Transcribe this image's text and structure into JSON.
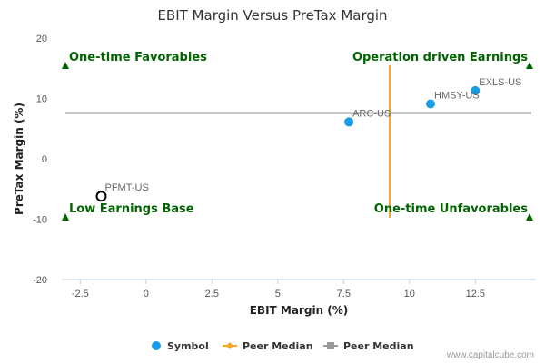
{
  "chart_data": {
    "type": "scatter",
    "title": "EBIT Margin Versus PreTax Margin",
    "xlabel": "EBIT Margin (%)",
    "ylabel": "PreTax Margin (%)",
    "xlim": [
      -3.2,
      14.8
    ],
    "ylim": [
      -20,
      20
    ],
    "xticks": [
      -2.5,
      0,
      2.5,
      5,
      7.5,
      10,
      12.5
    ],
    "xtick_labels": [
      "-2.5",
      "0",
      "2.5",
      "5",
      "7.5",
      "10",
      "12.5"
    ],
    "yticks": [
      -20,
      -10,
      0,
      10,
      20
    ],
    "ytick_labels": [
      "-20",
      "-10",
      "0",
      "10",
      "20"
    ],
    "grid": false,
    "points": [
      {
        "label": "EXLS-US",
        "x": 12.5,
        "y": 11.3,
        "style": "filled",
        "color": "#1a9be8"
      },
      {
        "label": "HMSY-US",
        "x": 10.8,
        "y": 9.1,
        "style": "filled",
        "color": "#1a9be8"
      },
      {
        "label": "ARC-US",
        "x": 7.7,
        "y": 6.1,
        "style": "filled",
        "color": "#1a9be8"
      },
      {
        "label": "PFMT-US",
        "x": -1.7,
        "y": -6.2,
        "style": "hollow",
        "color": "#000000"
      }
    ],
    "peer_median_x": 9.25,
    "peer_median_y": 7.6,
    "peer_median_x_range": [
      -9.8,
      15.5
    ],
    "quadrants": {
      "top_left": "One-time Favorables",
      "top_right": "Operation driven Earnings",
      "bottom_left": "Low Earnings Base",
      "bottom_right": "One-time Unfavorables"
    },
    "legend": {
      "placement": "bottom-center",
      "items": [
        {
          "name": "Symbol",
          "type": "circle",
          "color": "#1a9be8"
        },
        {
          "name": "Peer Median",
          "type": "line-diamond",
          "color": "#f5a623"
        },
        {
          "name": "Peer Median",
          "type": "line-square",
          "color": "#999999"
        }
      ]
    },
    "colors": {
      "symbol": "#1a9be8",
      "peer_median_vertical": "#f5a623",
      "peer_median_horizontal": "#999999",
      "quadrant_text": "#006400"
    }
  },
  "credit": "www.capitalcube.com"
}
